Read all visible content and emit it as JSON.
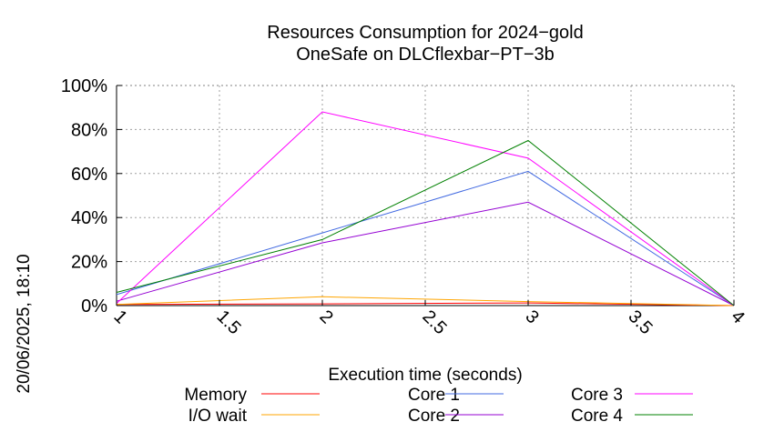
{
  "chart_data": {
    "type": "line",
    "title": "Resources Consumption for 2024−gold",
    "subtitle": "OneSafe on DLCflexbar−PT−3b",
    "xlabel": "Execution time (seconds)",
    "ylabel": "",
    "side_label": "20/06/2025, 18:10",
    "xlim": [
      1,
      4
    ],
    "ylim": [
      0,
      100
    ],
    "x_ticks": [
      1,
      1.5,
      2,
      2.5,
      3,
      3.5,
      4
    ],
    "x_tick_labels": [
      "1",
      "1.5",
      "2",
      "2.5",
      "3",
      "3.5",
      "4"
    ],
    "y_ticks": [
      0,
      20,
      40,
      60,
      80,
      100
    ],
    "y_tick_labels": [
      "0%",
      "20%",
      "40%",
      "60%",
      "80%",
      "100%"
    ],
    "grid": true,
    "legend_position": "bottom",
    "x": [
      1,
      2,
      3,
      4
    ],
    "series": [
      {
        "name": "Memory",
        "color": "#ff0000",
        "values": [
          0.5,
          0.8,
          1.2,
          0
        ]
      },
      {
        "name": "I/O wait",
        "color": "#ffa500",
        "values": [
          0.5,
          4,
          1.8,
          0
        ]
      },
      {
        "name": "Core 1",
        "color": "#4169e1",
        "values": [
          5,
          33,
          61,
          0
        ]
      },
      {
        "name": "Core 2",
        "color": "#9400d3",
        "values": [
          2,
          28.5,
          47,
          0
        ]
      },
      {
        "name": "Core 3",
        "color": "#ff00ff",
        "values": [
          1,
          88,
          67,
          0
        ]
      },
      {
        "name": "Core 4",
        "color": "#008000",
        "values": [
          6,
          30,
          75,
          0
        ]
      }
    ]
  }
}
